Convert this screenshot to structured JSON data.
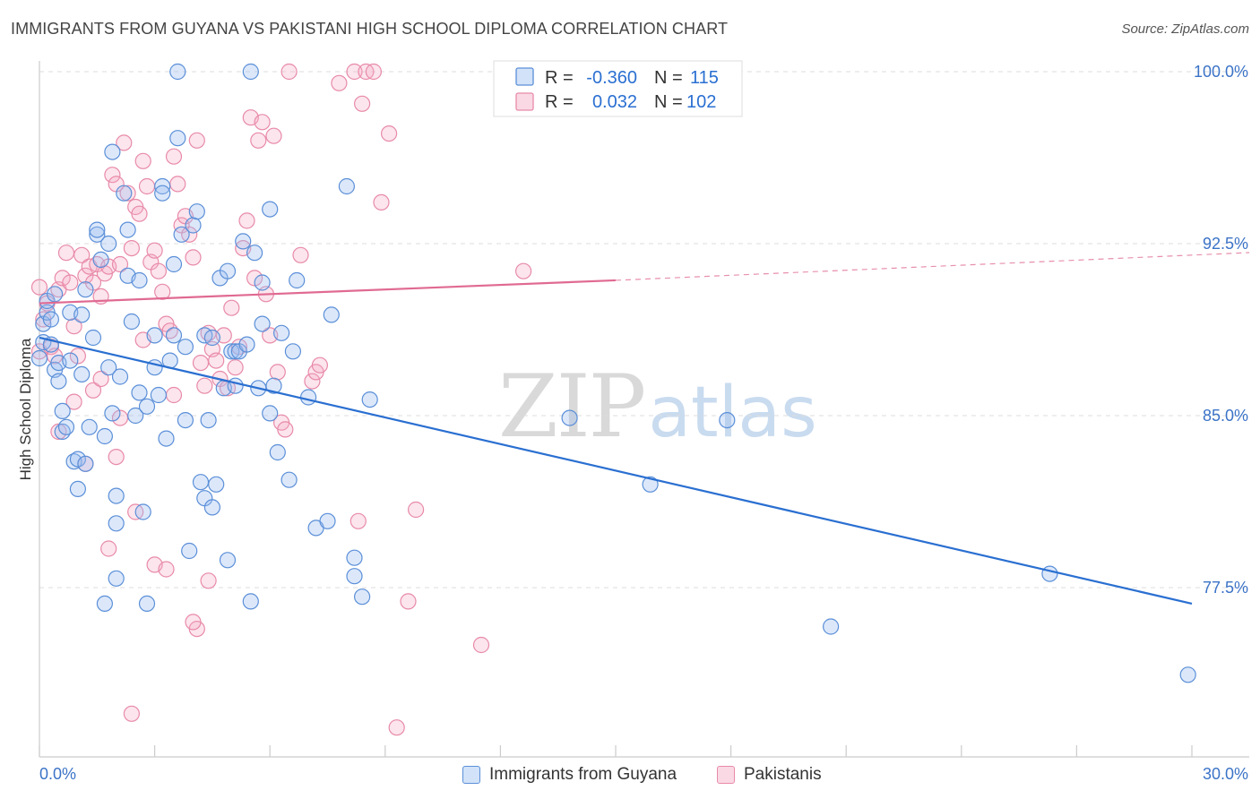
{
  "header": {
    "title": "IMMIGRANTS FROM GUYANA VS PAKISTANI HIGH SCHOOL DIPLOMA CORRELATION CHART",
    "source": "Source: ZipAtlas.com"
  },
  "watermark": {
    "part1": "ZIP",
    "part2": "atlas"
  },
  "colors": {
    "blue": "#5b8fd8",
    "blue_fill": "rgba(155,190,240,0.35)",
    "blue_line": "#2a6fd1",
    "pink": "#e88aa8",
    "pink_fill": "rgba(245,170,195,0.30)",
    "pink_line": "#e06a92",
    "grid": "#dddddd",
    "tick_text": "#3b73c7"
  },
  "legend": {
    "rows": [
      {
        "r_label": "R =",
        "r_value": "-0.360",
        "n_label": "N =",
        "n_value": "115"
      },
      {
        "r_label": "R =",
        "r_value": "0.032",
        "n_label": "N =",
        "n_value": "102"
      }
    ]
  },
  "chart_data": {
    "type": "scatter",
    "title": "IMMIGRANTS FROM GUYANA VS PAKISTANI HIGH SCHOOL DIPLOMA CORRELATION CHART",
    "xlabel": "",
    "ylabel": "High School Diploma",
    "xlim": [
      0,
      30
    ],
    "ylim": [
      71.0,
      100.5
    ],
    "x_tick_labels": [
      "0.0%",
      "30.0%"
    ],
    "y_ticks": [
      77.5,
      85.0,
      92.5,
      100.0
    ],
    "y_tick_labels": [
      "77.5%",
      "85.0%",
      "92.5%",
      "100.0%"
    ],
    "series": [
      {
        "name": "Immigrants from Guyana",
        "color": "blue",
        "r": -0.36,
        "n": 115,
        "trend": {
          "x": [
            0,
            30
          ],
          "y": [
            88.4,
            76.8
          ]
        },
        "points": [
          [
            0.0,
            87.5
          ],
          [
            0.1,
            89.0
          ],
          [
            0.1,
            88.2
          ],
          [
            0.2,
            89.5
          ],
          [
            0.2,
            90.0
          ],
          [
            0.3,
            89.2
          ],
          [
            0.3,
            88.1
          ],
          [
            0.4,
            90.3
          ],
          [
            0.4,
            87.0
          ],
          [
            0.5,
            87.3
          ],
          [
            0.5,
            86.5
          ],
          [
            0.6,
            85.2
          ],
          [
            0.6,
            84.3
          ],
          [
            0.7,
            84.5
          ],
          [
            0.8,
            89.5
          ],
          [
            0.8,
            87.4
          ],
          [
            0.9,
            83.0
          ],
          [
            1.0,
            81.8
          ],
          [
            1.0,
            83.1
          ],
          [
            1.1,
            89.4
          ],
          [
            1.1,
            86.8
          ],
          [
            1.2,
            90.5
          ],
          [
            1.2,
            82.9
          ],
          [
            1.3,
            84.5
          ],
          [
            1.4,
            88.4
          ],
          [
            1.5,
            92.9
          ],
          [
            1.5,
            93.1
          ],
          [
            1.6,
            91.8
          ],
          [
            1.7,
            84.1
          ],
          [
            1.7,
            76.8
          ],
          [
            1.8,
            92.5
          ],
          [
            1.8,
            87.1
          ],
          [
            1.9,
            85.1
          ],
          [
            1.9,
            96.5
          ],
          [
            2.0,
            81.5
          ],
          [
            2.0,
            80.3
          ],
          [
            2.0,
            77.9
          ],
          [
            2.1,
            86.7
          ],
          [
            2.2,
            94.7
          ],
          [
            2.3,
            93.1
          ],
          [
            2.3,
            91.1
          ],
          [
            2.4,
            89.1
          ],
          [
            2.5,
            85.0
          ],
          [
            2.6,
            90.9
          ],
          [
            2.6,
            86.0
          ],
          [
            2.7,
            80.8
          ],
          [
            2.8,
            85.4
          ],
          [
            2.8,
            76.8
          ],
          [
            3.0,
            87.1
          ],
          [
            3.0,
            88.5
          ],
          [
            3.1,
            85.9
          ],
          [
            3.2,
            95.0
          ],
          [
            3.3,
            84.0
          ],
          [
            3.4,
            87.4
          ],
          [
            3.5,
            88.5
          ],
          [
            3.5,
            91.6
          ],
          [
            3.6,
            97.1
          ],
          [
            3.7,
            92.9
          ],
          [
            3.8,
            88.0
          ],
          [
            3.8,
            84.8
          ],
          [
            3.9,
            79.1
          ],
          [
            4.0,
            93.3
          ],
          [
            4.1,
            93.9
          ],
          [
            4.2,
            82.1
          ],
          [
            4.3,
            88.5
          ],
          [
            4.3,
            81.4
          ],
          [
            4.4,
            84.8
          ],
          [
            4.5,
            81.0
          ],
          [
            4.5,
            88.4
          ],
          [
            4.6,
            82.0
          ],
          [
            4.7,
            91.0
          ],
          [
            4.8,
            86.2
          ],
          [
            4.9,
            91.3
          ],
          [
            4.9,
            78.7
          ],
          [
            5.0,
            87.8
          ],
          [
            5.1,
            86.3
          ],
          [
            5.1,
            87.8
          ],
          [
            5.2,
            87.8
          ],
          [
            5.3,
            92.6
          ],
          [
            5.4,
            88.1
          ],
          [
            5.5,
            76.9
          ],
          [
            5.6,
            92.1
          ],
          [
            5.7,
            86.2
          ],
          [
            5.8,
            90.8
          ],
          [
            5.8,
            89.0
          ],
          [
            6.0,
            85.1
          ],
          [
            6.1,
            86.3
          ],
          [
            6.2,
            83.4
          ],
          [
            6.3,
            88.6
          ],
          [
            6.5,
            82.2
          ],
          [
            6.6,
            87.8
          ],
          [
            6.7,
            90.9
          ],
          [
            7.0,
            85.8
          ],
          [
            7.2,
            80.1
          ],
          [
            7.5,
            80.4
          ],
          [
            7.6,
            89.4
          ],
          [
            8.0,
            95.0
          ],
          [
            8.2,
            78.0
          ],
          [
            8.2,
            78.8
          ],
          [
            8.4,
            77.1
          ],
          [
            8.6,
            85.7
          ],
          [
            3.6,
            100.0
          ],
          [
            5.5,
            100.0
          ],
          [
            13.8,
            84.9
          ],
          [
            15.9,
            82.0
          ],
          [
            17.9,
            84.8
          ],
          [
            20.6,
            75.8
          ],
          [
            26.3,
            78.1
          ],
          [
            29.9,
            73.7
          ],
          [
            6.0,
            94.0
          ],
          [
            3.2,
            94.7
          ]
        ]
      },
      {
        "name": "Pakistanis",
        "color": "pink",
        "r": 0.032,
        "n": 102,
        "trend": {
          "x": [
            0,
            15
          ],
          "y": [
            89.9,
            90.9
          ]
        },
        "trend_dashed": {
          "x": [
            15,
            30
          ],
          "y": [
            90.9,
            92.0
          ]
        },
        "points": [
          [
            0.0,
            87.8
          ],
          [
            0.0,
            90.6
          ],
          [
            0.1,
            89.2
          ],
          [
            0.2,
            89.9
          ],
          [
            0.3,
            88.0
          ],
          [
            0.4,
            87.6
          ],
          [
            0.5,
            90.5
          ],
          [
            0.6,
            91.0
          ],
          [
            0.7,
            92.1
          ],
          [
            0.8,
            90.8
          ],
          [
            0.9,
            88.9
          ],
          [
            1.0,
            87.6
          ],
          [
            1.1,
            92.0
          ],
          [
            1.2,
            91.1
          ],
          [
            1.3,
            91.5
          ],
          [
            1.4,
            90.8
          ],
          [
            1.5,
            91.6
          ],
          [
            1.6,
            90.2
          ],
          [
            1.7,
            91.2
          ],
          [
            1.8,
            91.5
          ],
          [
            1.9,
            95.5
          ],
          [
            2.0,
            95.1
          ],
          [
            2.1,
            91.6
          ],
          [
            2.2,
            96.9
          ],
          [
            2.3,
            94.7
          ],
          [
            2.4,
            92.3
          ],
          [
            2.5,
            94.1
          ],
          [
            2.6,
            93.8
          ],
          [
            2.7,
            96.1
          ],
          [
            2.8,
            95.0
          ],
          [
            2.9,
            91.7
          ],
          [
            3.0,
            92.2
          ],
          [
            3.1,
            91.3
          ],
          [
            3.2,
            90.4
          ],
          [
            3.3,
            89.0
          ],
          [
            3.4,
            88.7
          ],
          [
            3.5,
            96.3
          ],
          [
            3.6,
            95.1
          ],
          [
            3.7,
            93.3
          ],
          [
            3.8,
            93.7
          ],
          [
            3.9,
            92.9
          ],
          [
            4.0,
            91.9
          ],
          [
            4.1,
            97.0
          ],
          [
            4.2,
            87.3
          ],
          [
            4.3,
            86.3
          ],
          [
            4.4,
            88.6
          ],
          [
            4.5,
            87.9
          ],
          [
            4.6,
            87.4
          ],
          [
            4.7,
            86.6
          ],
          [
            4.8,
            88.5
          ],
          [
            4.9,
            86.2
          ],
          [
            5.0,
            89.7
          ],
          [
            5.1,
            87.1
          ],
          [
            5.2,
            88.0
          ],
          [
            5.3,
            92.3
          ],
          [
            5.4,
            93.5
          ],
          [
            5.5,
            98.0
          ],
          [
            5.6,
            91.0
          ],
          [
            5.7,
            97.0
          ],
          [
            5.8,
            97.8
          ],
          [
            5.9,
            90.3
          ],
          [
            6.0,
            88.5
          ],
          [
            6.1,
            97.2
          ],
          [
            6.2,
            86.9
          ],
          [
            6.3,
            84.7
          ],
          [
            6.4,
            84.4
          ],
          [
            6.5,
            100.0
          ],
          [
            6.8,
            92.0
          ],
          [
            7.1,
            86.5
          ],
          [
            7.2,
            86.9
          ],
          [
            7.3,
            87.2
          ],
          [
            7.8,
            99.5
          ],
          [
            8.2,
            100.0
          ],
          [
            8.4,
            98.6
          ],
          [
            8.5,
            100.0
          ],
          [
            8.7,
            100.0
          ],
          [
            8.9,
            94.3
          ],
          [
            9.1,
            97.3
          ],
          [
            9.3,
            71.4
          ],
          [
            9.6,
            76.9
          ],
          [
            9.8,
            80.9
          ],
          [
            11.5,
            75.0
          ],
          [
            12.3,
            100.0
          ],
          [
            12.6,
            91.3
          ],
          [
            1.8,
            79.2
          ],
          [
            2.5,
            80.8
          ],
          [
            3.0,
            78.5
          ],
          [
            3.3,
            78.3
          ],
          [
            4.1,
            75.7
          ],
          [
            4.0,
            76.0
          ],
          [
            4.4,
            77.8
          ],
          [
            2.4,
            72.0
          ],
          [
            8.3,
            80.4
          ],
          [
            2.7,
            88.3
          ],
          [
            1.4,
            86.1
          ],
          [
            2.0,
            83.2
          ],
          [
            3.5,
            85.9
          ],
          [
            1.2,
            82.9
          ],
          [
            0.9,
            85.6
          ],
          [
            0.5,
            84.3
          ],
          [
            2.1,
            84.9
          ],
          [
            1.6,
            86.6
          ]
        ]
      }
    ]
  },
  "bottom_legend": {
    "items": [
      {
        "label": "Immigrants from Guyana"
      },
      {
        "label": "Pakistanis"
      }
    ]
  }
}
